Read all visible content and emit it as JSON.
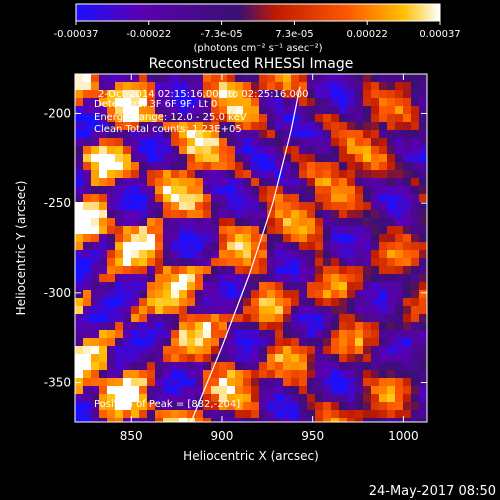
{
  "chart_data": {
    "type": "heatmap",
    "title": "Reconstructed RHESSI Image",
    "xlabel": "Heliocentric X (arcsec)",
    "ylabel": "Heliocentric Y (arcsec)",
    "xlim": [
      819,
      1013
    ],
    "ylim": [
      -372,
      -178
    ],
    "x_ticks": [
      850,
      900,
      950,
      1000
    ],
    "y_ticks": [
      -350,
      -300,
      -250,
      -200
    ],
    "colorbar": {
      "range": [
        -0.00037,
        0.00037
      ],
      "ticks": [
        "-0.00037",
        "-0.00022",
        "-7.3e-05",
        "7.3e-05",
        "0.00022",
        "0.00037"
      ],
      "label": "(photons cm⁻² s⁻¹ asec⁻²)",
      "colors": [
        "#1a10ff",
        "#5a00b0",
        "#3a1070",
        "#c01a00",
        "#ff5a00",
        "#ffc000",
        "#ffffff"
      ]
    },
    "info_lines": [
      "2-Oct-2014 02:15:16.000 to 02:25:16.000",
      "Detectors: 3F 6F 9F, Lt 0",
      "Energy Range: 12.0 - 25.0 keV",
      "Clean     Total counts: 1.23E+05"
    ],
    "peak_text": "Position of Peak = [882,-204]",
    "limb_curve": [
      [
        883,
        -372
      ],
      [
        900,
        -330
      ],
      [
        915,
        -290
      ],
      [
        928,
        -250
      ],
      [
        938,
        -210
      ],
      [
        943,
        -185
      ]
    ],
    "grid": false,
    "legend": "none"
  },
  "footer": {
    "date": "24-May-2017 08:50"
  }
}
